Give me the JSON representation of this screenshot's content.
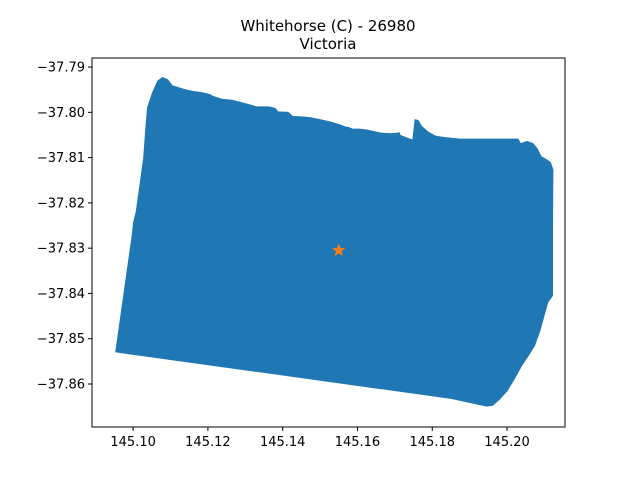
{
  "title_line1": "Whitehorse (C) - 26980",
  "title_line2": "Victoria",
  "x_ticks": [
    "145.10",
    "145.12",
    "145.14",
    "145.16",
    "145.18",
    "145.20"
  ],
  "y_ticks": [
    "−37.79",
    "−37.80",
    "−37.81",
    "−37.82",
    "−37.83",
    "−37.84",
    "−37.85",
    "−37.86"
  ],
  "colors": {
    "region_fill": "#1f77b4",
    "marker": "#ff7f0e"
  },
  "marker_icon": "star-icon",
  "chart_data": {
    "type": "map",
    "title": "Whitehorse (C) - 26980\nVictoria",
    "xlim": [
      145.089,
      145.2155
    ],
    "ylim": [
      -37.8695,
      -37.788
    ],
    "region_name": "Whitehorse (C) - 26980",
    "region_outline": [
      [
        145.1182,
        -37.7955
      ],
      [
        145.1207,
        -37.796
      ],
      [
        145.1212,
        -37.7963
      ],
      [
        145.1237,
        -37.797
      ],
      [
        145.1265,
        -37.7972
      ],
      [
        145.1315,
        -37.7983
      ],
      [
        145.133,
        -37.7987
      ],
      [
        145.1362,
        -37.7987
      ],
      [
        145.138,
        -37.799
      ],
      [
        145.1388,
        -37.7998
      ],
      [
        145.1415,
        -37.7999
      ],
      [
        145.1427,
        -37.8008
      ],
      [
        145.1452,
        -37.8009
      ],
      [
        145.1475,
        -37.8011
      ],
      [
        145.15,
        -37.8015
      ],
      [
        145.153,
        -37.8021
      ],
      [
        145.1555,
        -37.8027
      ],
      [
        145.157,
        -37.8032
      ],
      [
        145.1575,
        -37.8032
      ],
      [
        145.1587,
        -37.8036
      ],
      [
        145.1605,
        -37.8036
      ],
      [
        145.1625,
        -37.8038
      ],
      [
        145.1652,
        -37.8043
      ],
      [
        145.1665,
        -37.8045
      ],
      [
        145.1692,
        -37.8046
      ],
      [
        145.1713,
        -37.8044
      ],
      [
        145.1715,
        -37.805
      ],
      [
        145.1747,
        -37.806
      ],
      [
        145.1753,
        -37.8015
      ],
      [
        145.1763,
        -37.8017
      ],
      [
        145.1772,
        -37.803
      ],
      [
        145.179,
        -37.8043
      ],
      [
        145.181,
        -37.8052
      ],
      [
        145.1838,
        -37.8055
      ],
      [
        145.1875,
        -37.8058
      ],
      [
        145.1968,
        -37.8058
      ],
      [
        145.203,
        -37.8058
      ],
      [
        145.2037,
        -37.8068
      ],
      [
        145.2053,
        -37.8063
      ],
      [
        145.207,
        -37.8068
      ],
      [
        145.2082,
        -37.808
      ],
      [
        145.2092,
        -37.8097
      ],
      [
        145.2105,
        -37.8103
      ],
      [
        145.2117,
        -37.811
      ],
      [
        145.2124,
        -37.8127
      ],
      [
        145.2123,
        -37.8245
      ],
      [
        145.2123,
        -37.8335
      ],
      [
        145.2123,
        -37.8405
      ],
      [
        145.211,
        -37.842
      ],
      [
        145.21,
        -37.845
      ],
      [
        145.209,
        -37.848
      ],
      [
        145.2075,
        -37.8515
      ],
      [
        145.206,
        -37.8535
      ],
      [
        145.204,
        -37.856
      ],
      [
        145.202,
        -37.859
      ],
      [
        145.2,
        -37.8617
      ],
      [
        145.198,
        -37.8635
      ],
      [
        145.1962,
        -37.8648
      ],
      [
        145.1945,
        -37.865
      ],
      [
        145.185,
        -37.8633
      ],
      [
        145.0952,
        -37.853
      ],
      [
        145.0997,
        -37.8267
      ],
      [
        145.1,
        -37.8243
      ],
      [
        145.1007,
        -37.822
      ],
      [
        145.1017,
        -37.816
      ],
      [
        145.1027,
        -37.81
      ],
      [
        145.1033,
        -37.803
      ],
      [
        145.1037,
        -37.799
      ],
      [
        145.105,
        -37.7958
      ],
      [
        145.1065,
        -37.793
      ],
      [
        145.1078,
        -37.7922
      ],
      [
        145.1093,
        -37.7927
      ],
      [
        145.1105,
        -37.794
      ],
      [
        145.1135,
        -37.7948
      ],
      [
        145.1162,
        -37.7953
      ]
    ],
    "marker": {
      "lon": 145.155,
      "lat": -37.8305,
      "shape": "star"
    }
  }
}
